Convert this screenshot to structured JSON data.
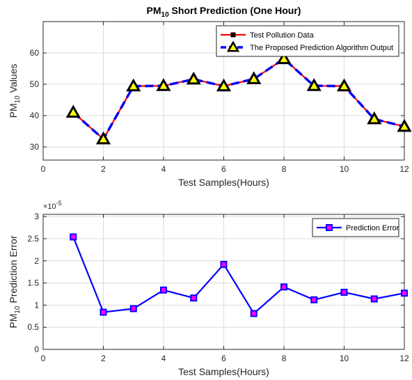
{
  "chart_data": [
    {
      "type": "line",
      "title_main": "PM",
      "title_sub": "10",
      "title_rest": " Short Prediction (One Hour)",
      "xlabel": "Test Samples(Hours)",
      "ylabel_main": "PM",
      "ylabel_sub": "10",
      "ylabel_rest": " Values",
      "xlim": [
        0,
        12
      ],
      "ylim": [
        25.8,
        70
      ],
      "xticks": [
        0,
        2,
        4,
        6,
        8,
        10,
        12
      ],
      "xtick_labels": [
        "0",
        "2",
        "4",
        "6",
        "8",
        "10",
        "12"
      ],
      "yticks": [
        30,
        40,
        50,
        60
      ],
      "ytick_labels": [
        "30",
        "40",
        "50",
        "60"
      ],
      "grid": true,
      "legend_position": "top-right",
      "x": [
        1,
        2,
        3,
        4,
        5,
        6,
        7,
        8,
        9,
        10,
        11,
        12
      ],
      "series": [
        {
          "name": "Test Pollution Data",
          "color": "#ff0000",
          "marker": "square",
          "values": [
            41,
            32.5,
            49.4,
            49.5,
            51.6,
            49.4,
            51.7,
            58.1,
            49.5,
            49.4,
            38.9,
            36.5
          ]
        },
        {
          "name": "The Proposed Prediction Algorithm Output",
          "color": "#0000ff",
          "marker": "triangle",
          "marker_fill": "#ffff00",
          "values": [
            41,
            32.5,
            49.4,
            49.5,
            51.6,
            49.4,
            51.7,
            58.1,
            49.5,
            49.4,
            38.9,
            36.5
          ]
        }
      ]
    },
    {
      "type": "line",
      "xlabel": "Test Samples(Hours)",
      "ylabel_main": "PM",
      "ylabel_sub": "10",
      "ylabel_rest": " Prediction Error",
      "exponent_label": "×10",
      "exponent_value": "-5",
      "xlim": [
        0,
        12
      ],
      "ylim": [
        0,
        3.05
      ],
      "xticks": [
        0,
        2,
        4,
        6,
        8,
        10,
        12
      ],
      "xtick_labels": [
        "0",
        "2",
        "4",
        "6",
        "8",
        "10",
        "12"
      ],
      "yticks": [
        0,
        0.5,
        1,
        1.5,
        2,
        2.5,
        3
      ],
      "ytick_labels": [
        "0",
        "0.5",
        "1",
        "1.5",
        "2",
        "2.5",
        "3"
      ],
      "grid": true,
      "legend_position": "top-right",
      "x": [
        1,
        2,
        3,
        4,
        5,
        6,
        7,
        8,
        9,
        10,
        11,
        12
      ],
      "series": [
        {
          "name": "Prediction Error",
          "color": "#0000ff",
          "marker": "square",
          "marker_fill": "#ff00ff",
          "values": [
            2.54,
            0.84,
            0.92,
            1.34,
            1.16,
            1.92,
            0.81,
            1.41,
            1.12,
            1.29,
            1.14,
            1.27
          ]
        }
      ]
    }
  ]
}
